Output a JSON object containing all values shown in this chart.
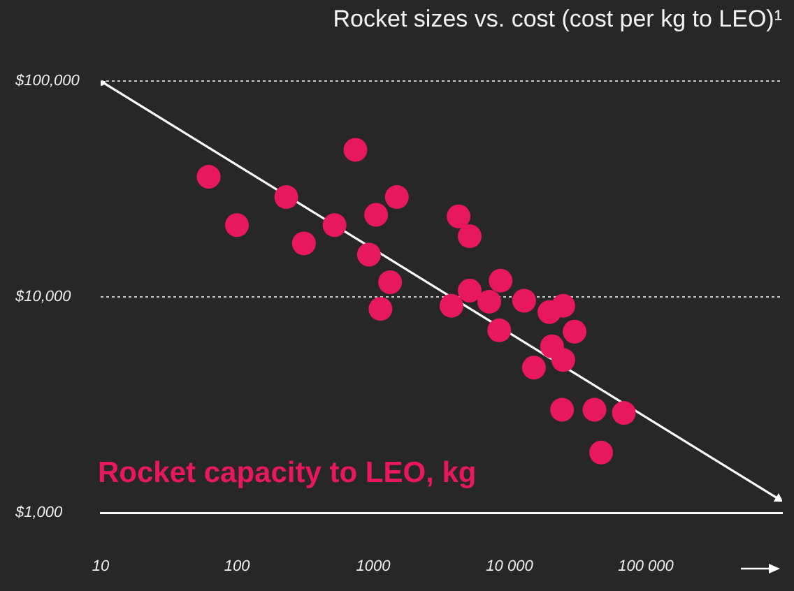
{
  "chart_data": {
    "type": "scatter",
    "title": "Rocket sizes vs. cost (cost per kg to LEO)¹",
    "xlabel": "Rocket capacity to LEO, kg",
    "log": "xy",
    "xlim": [
      10,
      1000000
    ],
    "ylim": [
      1000,
      100000
    ],
    "xticks": [
      10,
      100,
      1000,
      {
        "value": 10000,
        "label": "10 000"
      },
      {
        "value": 100000,
        "label": "100 000"
      }
    ],
    "yticks": [
      {
        "value": 1000,
        "label": "$1,000"
      },
      {
        "value": 10000,
        "label": "$10,000"
      },
      {
        "value": 100000,
        "label": "$100,000"
      }
    ],
    "grid": "y",
    "legend": false,
    "marker": "circle",
    "series": [
      {
        "color": "#e8185f",
        "x": [
          62,
          100,
          230,
          310,
          520,
          740,
          930,
          1050,
          1130,
          1330,
          1490,
          3750,
          4230,
          5100,
          5100,
          7100,
          8600,
          8400,
          12800,
          15100,
          19600,
          24800,
          30000,
          20500,
          24800,
          24300,
          42000,
          69000,
          47000
        ],
        "values": [
          36000,
          21500,
          29000,
          17700,
          21500,
          48000,
          15700,
          24000,
          8800,
          11700,
          29000,
          9100,
          23600,
          19100,
          10700,
          9500,
          11900,
          7000,
          9600,
          4700,
          8500,
          9100,
          6900,
          5900,
          5100,
          3000,
          3000,
          2900,
          1900
        ]
      },
      {
        "type": "line",
        "color": "#ffffff",
        "x": [
          10,
          940000
        ],
        "values": [
          100000,
          1160
        ]
      }
    ]
  }
}
